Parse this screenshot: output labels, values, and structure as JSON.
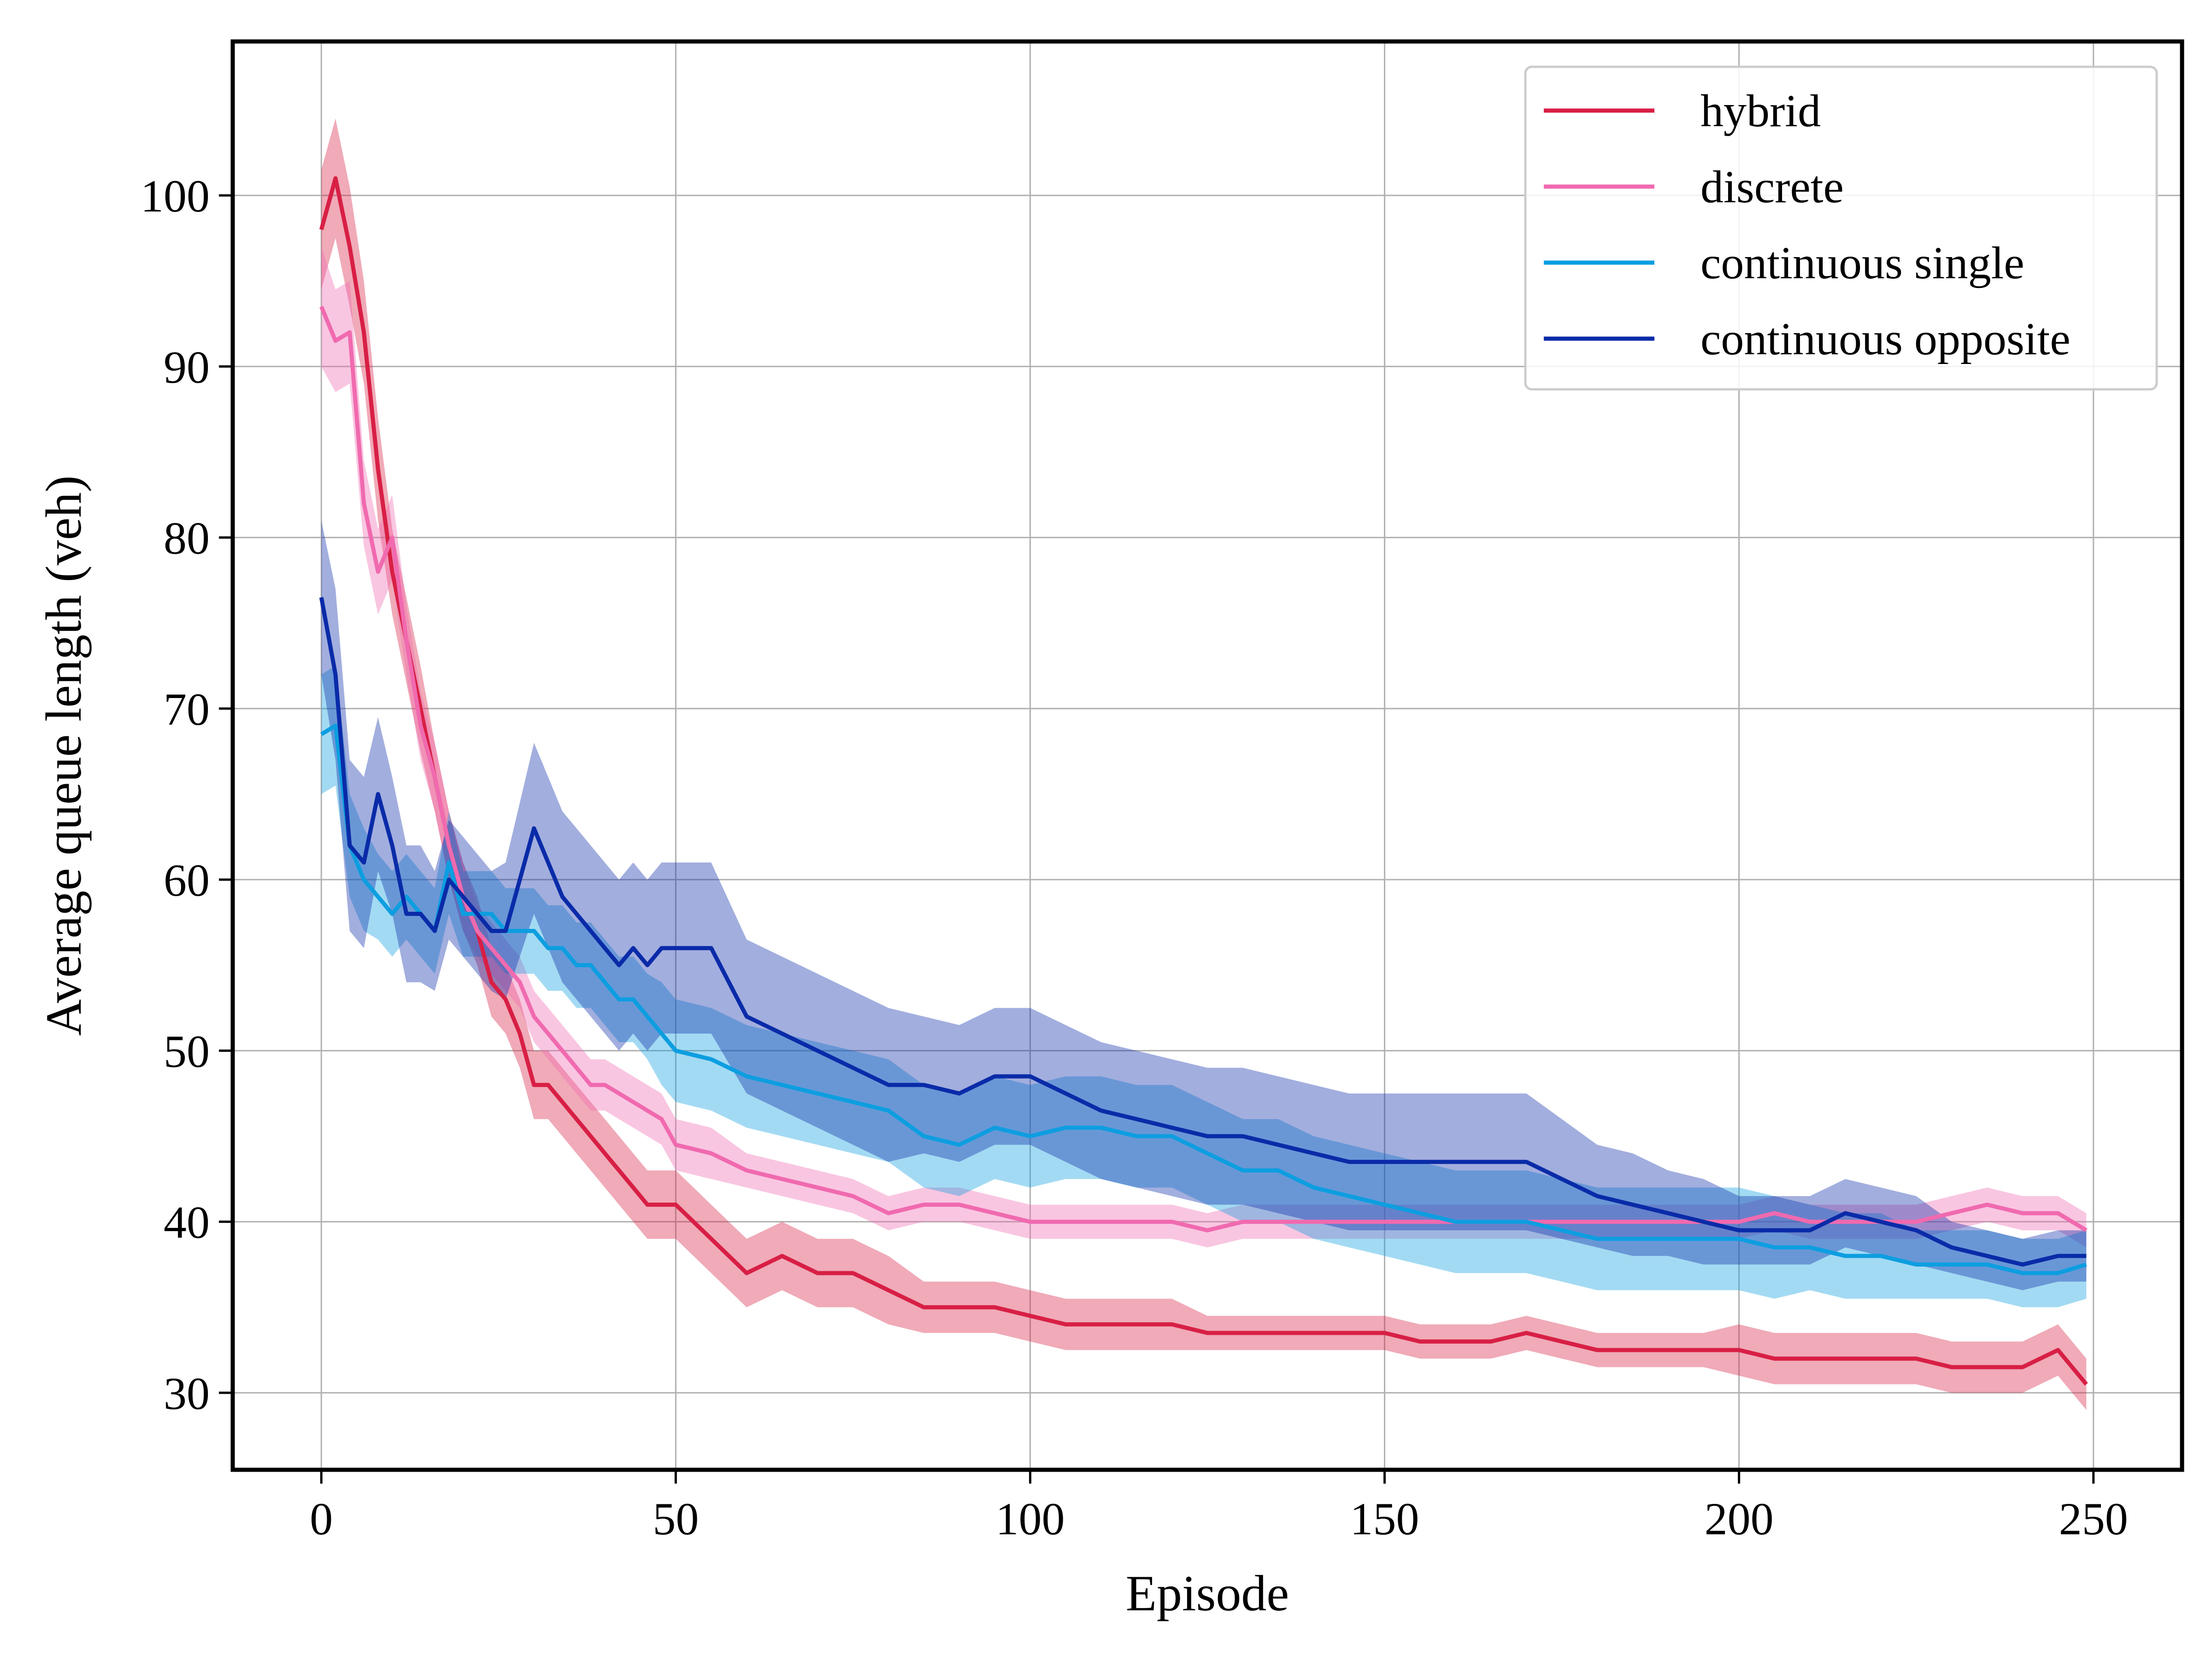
{
  "chart_data": {
    "type": "line",
    "title": "",
    "xlabel": "Episode",
    "ylabel": "Average queue length (veh)",
    "xlim": [
      -12.5,
      262.5
    ],
    "ylim": [
      25.5,
      109
    ],
    "xticks": [
      0,
      50,
      100,
      150,
      200,
      250
    ],
    "yticks": [
      30,
      40,
      50,
      60,
      70,
      80,
      90,
      100
    ],
    "grid": true,
    "legend_position": "top-right",
    "band_opacity": 0.38,
    "series": [
      {
        "name": "hybrid",
        "color": "#d81f45",
        "x": [
          0,
          2,
          4,
          6,
          8,
          10,
          12,
          14,
          16,
          18,
          20,
          22,
          24,
          26,
          28,
          30,
          32,
          34,
          36,
          38,
          40,
          42,
          44,
          46,
          48,
          50,
          55,
          60,
          65,
          70,
          75,
          80,
          85,
          90,
          95,
          100,
          105,
          110,
          115,
          120,
          125,
          130,
          135,
          140,
          145,
          150,
          155,
          160,
          165,
          170,
          175,
          180,
          185,
          190,
          195,
          200,
          205,
          210,
          215,
          220,
          225,
          230,
          235,
          240,
          245,
          249
        ],
        "y": [
          98,
          101,
          97,
          92,
          84,
          78,
          74,
          70,
          66,
          62,
          59,
          57,
          54,
          53,
          51,
          48,
          48,
          47,
          46,
          45,
          44,
          43,
          42,
          41,
          41,
          41,
          39,
          37,
          38,
          37,
          37,
          36,
          35,
          35,
          35,
          34.5,
          34,
          34,
          34,
          34,
          33.5,
          33.5,
          33.5,
          33.5,
          33.5,
          33.5,
          33,
          33,
          33,
          33.5,
          33,
          32.5,
          32.5,
          32.5,
          32.5,
          32.5,
          32,
          32,
          32,
          32,
          32,
          31.5,
          31.5,
          31.5,
          32.5,
          30.5
        ],
        "band": [
          3.5,
          3.5,
          3.5,
          3,
          3,
          2.5,
          2.5,
          2.5,
          2,
          2,
          2,
          2,
          2,
          2,
          2,
          2,
          2,
          2,
          2,
          2,
          2,
          2,
          2,
          2,
          2,
          2,
          2,
          2,
          2,
          2,
          2,
          2,
          1.5,
          1.5,
          1.5,
          1.5,
          1.5,
          1.5,
          1.5,
          1.5,
          1,
          1,
          1,
          1,
          1,
          1,
          1,
          1,
          1,
          1,
          1,
          1,
          1,
          1,
          1,
          1.5,
          1.5,
          1.5,
          1.5,
          1.5,
          1.5,
          1.5,
          1.5,
          1.5,
          1.5,
          1.5
        ]
      },
      {
        "name": "discrete",
        "color": "#f06aaf",
        "x": [
          0,
          2,
          4,
          6,
          8,
          10,
          12,
          14,
          16,
          18,
          20,
          22,
          24,
          26,
          28,
          30,
          32,
          34,
          36,
          38,
          40,
          42,
          44,
          46,
          48,
          50,
          55,
          60,
          65,
          70,
          75,
          80,
          85,
          90,
          95,
          100,
          105,
          110,
          115,
          120,
          125,
          130,
          135,
          140,
          145,
          150,
          155,
          160,
          165,
          170,
          175,
          180,
          185,
          190,
          195,
          200,
          205,
          210,
          215,
          220,
          225,
          230,
          235,
          240,
          245,
          249
        ],
        "y": [
          93.5,
          91.5,
          92,
          82,
          78,
          80,
          74,
          69,
          66,
          62,
          59,
          57,
          56,
          55,
          54,
          52,
          51,
          50,
          49,
          48,
          48,
          47.5,
          47,
          46.5,
          46,
          44.5,
          44,
          43,
          42.5,
          42,
          41.5,
          40.5,
          41,
          41,
          40.5,
          40,
          40,
          40,
          40,
          40,
          39.5,
          40,
          40,
          40,
          40,
          40,
          40,
          40,
          40,
          40,
          40,
          40,
          40,
          40,
          40,
          40,
          40.5,
          40,
          40,
          40,
          40,
          40.5,
          41,
          40.5,
          40.5,
          39.5
        ],
        "band": [
          3.5,
          3,
          3,
          2.5,
          2.5,
          2.5,
          2,
          2,
          2,
          2,
          2,
          1.5,
          1.5,
          1.5,
          1.5,
          1.5,
          1.5,
          1.5,
          1.5,
          1.5,
          1.5,
          1.5,
          1.5,
          1.5,
          1.5,
          1.5,
          1.5,
          1,
          1,
          1,
          1,
          1,
          1,
          1,
          1,
          1,
          1,
          1,
          1,
          1,
          1,
          1,
          1,
          1,
          1,
          1,
          1,
          1,
          1,
          1,
          1,
          1,
          1,
          1,
          1,
          1,
          1,
          1,
          1,
          1,
          1,
          1,
          1,
          1,
          1,
          1
        ]
      },
      {
        "name": "continuous single",
        "color": "#0d9ee0",
        "x": [
          0,
          2,
          4,
          6,
          8,
          10,
          12,
          14,
          16,
          18,
          20,
          22,
          24,
          26,
          28,
          30,
          32,
          34,
          36,
          38,
          40,
          42,
          44,
          46,
          48,
          50,
          55,
          60,
          65,
          70,
          75,
          80,
          85,
          90,
          95,
          100,
          105,
          110,
          115,
          120,
          125,
          130,
          135,
          140,
          145,
          150,
          155,
          160,
          165,
          170,
          175,
          180,
          185,
          190,
          195,
          200,
          205,
          210,
          215,
          220,
          225,
          230,
          235,
          240,
          245,
          249
        ],
        "y": [
          68.5,
          69,
          62,
          60,
          59,
          58,
          59,
          58,
          57,
          61,
          58,
          58,
          58,
          57,
          57,
          57,
          56,
          56,
          55,
          55,
          54,
          53,
          53,
          52,
          51,
          50,
          49.5,
          48.5,
          48,
          47.5,
          47,
          46.5,
          45,
          44.5,
          45.5,
          45,
          45.5,
          45.5,
          45,
          45,
          44,
          43,
          43,
          42,
          41.5,
          41,
          40.5,
          40,
          40,
          40,
          39.5,
          39,
          39,
          39,
          39,
          39,
          38.5,
          38.5,
          38,
          38,
          37.5,
          37.5,
          37.5,
          37,
          37,
          37.5
        ],
        "band": [
          3.5,
          3.5,
          3,
          3,
          2.5,
          2.5,
          2.5,
          2.5,
          2.5,
          3,
          2.5,
          2.5,
          2.5,
          2.5,
          2.5,
          2.5,
          2.5,
          2.5,
          2.5,
          2.5,
          2.5,
          2.5,
          2.5,
          2.5,
          3,
          3,
          3,
          3,
          3,
          3,
          3,
          3,
          3,
          3,
          3,
          3,
          3,
          3,
          3,
          3,
          3,
          3,
          3,
          3,
          3,
          3,
          3,
          3,
          3,
          3,
          3,
          3,
          3,
          3,
          3,
          3,
          3,
          2.5,
          2.5,
          2.5,
          2,
          2,
          2,
          2,
          2,
          2
        ]
      },
      {
        "name": "continuous opposite",
        "color": "#0a2ba8",
        "x": [
          0,
          2,
          4,
          6,
          8,
          10,
          12,
          14,
          16,
          18,
          20,
          22,
          24,
          26,
          28,
          30,
          32,
          34,
          36,
          38,
          40,
          42,
          44,
          46,
          48,
          50,
          55,
          60,
          65,
          70,
          75,
          80,
          85,
          90,
          95,
          100,
          105,
          110,
          115,
          120,
          125,
          130,
          135,
          140,
          145,
          150,
          155,
          160,
          165,
          170,
          175,
          180,
          185,
          190,
          195,
          200,
          205,
          210,
          215,
          220,
          225,
          230,
          235,
          240,
          245,
          249
        ],
        "y": [
          76.5,
          72,
          62,
          61,
          65,
          62,
          58,
          58,
          57,
          60,
          59,
          58,
          57,
          57,
          60,
          63,
          61,
          59,
          58,
          57,
          56,
          55,
          56,
          55,
          56,
          56,
          56,
          52,
          51,
          50,
          49,
          48,
          48,
          47.5,
          48.5,
          48.5,
          47.5,
          46.5,
          46,
          45.5,
          45,
          45,
          44.5,
          44,
          43.5,
          43.5,
          43.5,
          43.5,
          43.5,
          43.5,
          42.5,
          41.5,
          41,
          40.5,
          40,
          39.5,
          39.5,
          39.5,
          40.5,
          40,
          39.5,
          38.5,
          38,
          37.5,
          38,
          38
        ],
        "band": [
          4.5,
          5,
          5,
          5,
          4.5,
          4,
          4,
          4,
          3.5,
          3.5,
          3.5,
          3.5,
          3.5,
          4,
          4.5,
          5,
          5,
          5,
          5,
          5,
          5,
          5,
          5,
          5,
          5,
          5,
          5,
          4.5,
          4.5,
          4.5,
          4.5,
          4.5,
          4,
          4,
          4,
          4,
          4,
          4,
          4,
          4,
          4,
          4,
          4,
          4,
          4,
          4,
          4,
          4,
          4,
          4,
          3.5,
          3,
          3,
          2.5,
          2.5,
          2,
          2,
          2,
          2,
          2,
          2,
          1.5,
          1.5,
          1.5,
          1.5,
          1.5
        ]
      }
    ]
  }
}
